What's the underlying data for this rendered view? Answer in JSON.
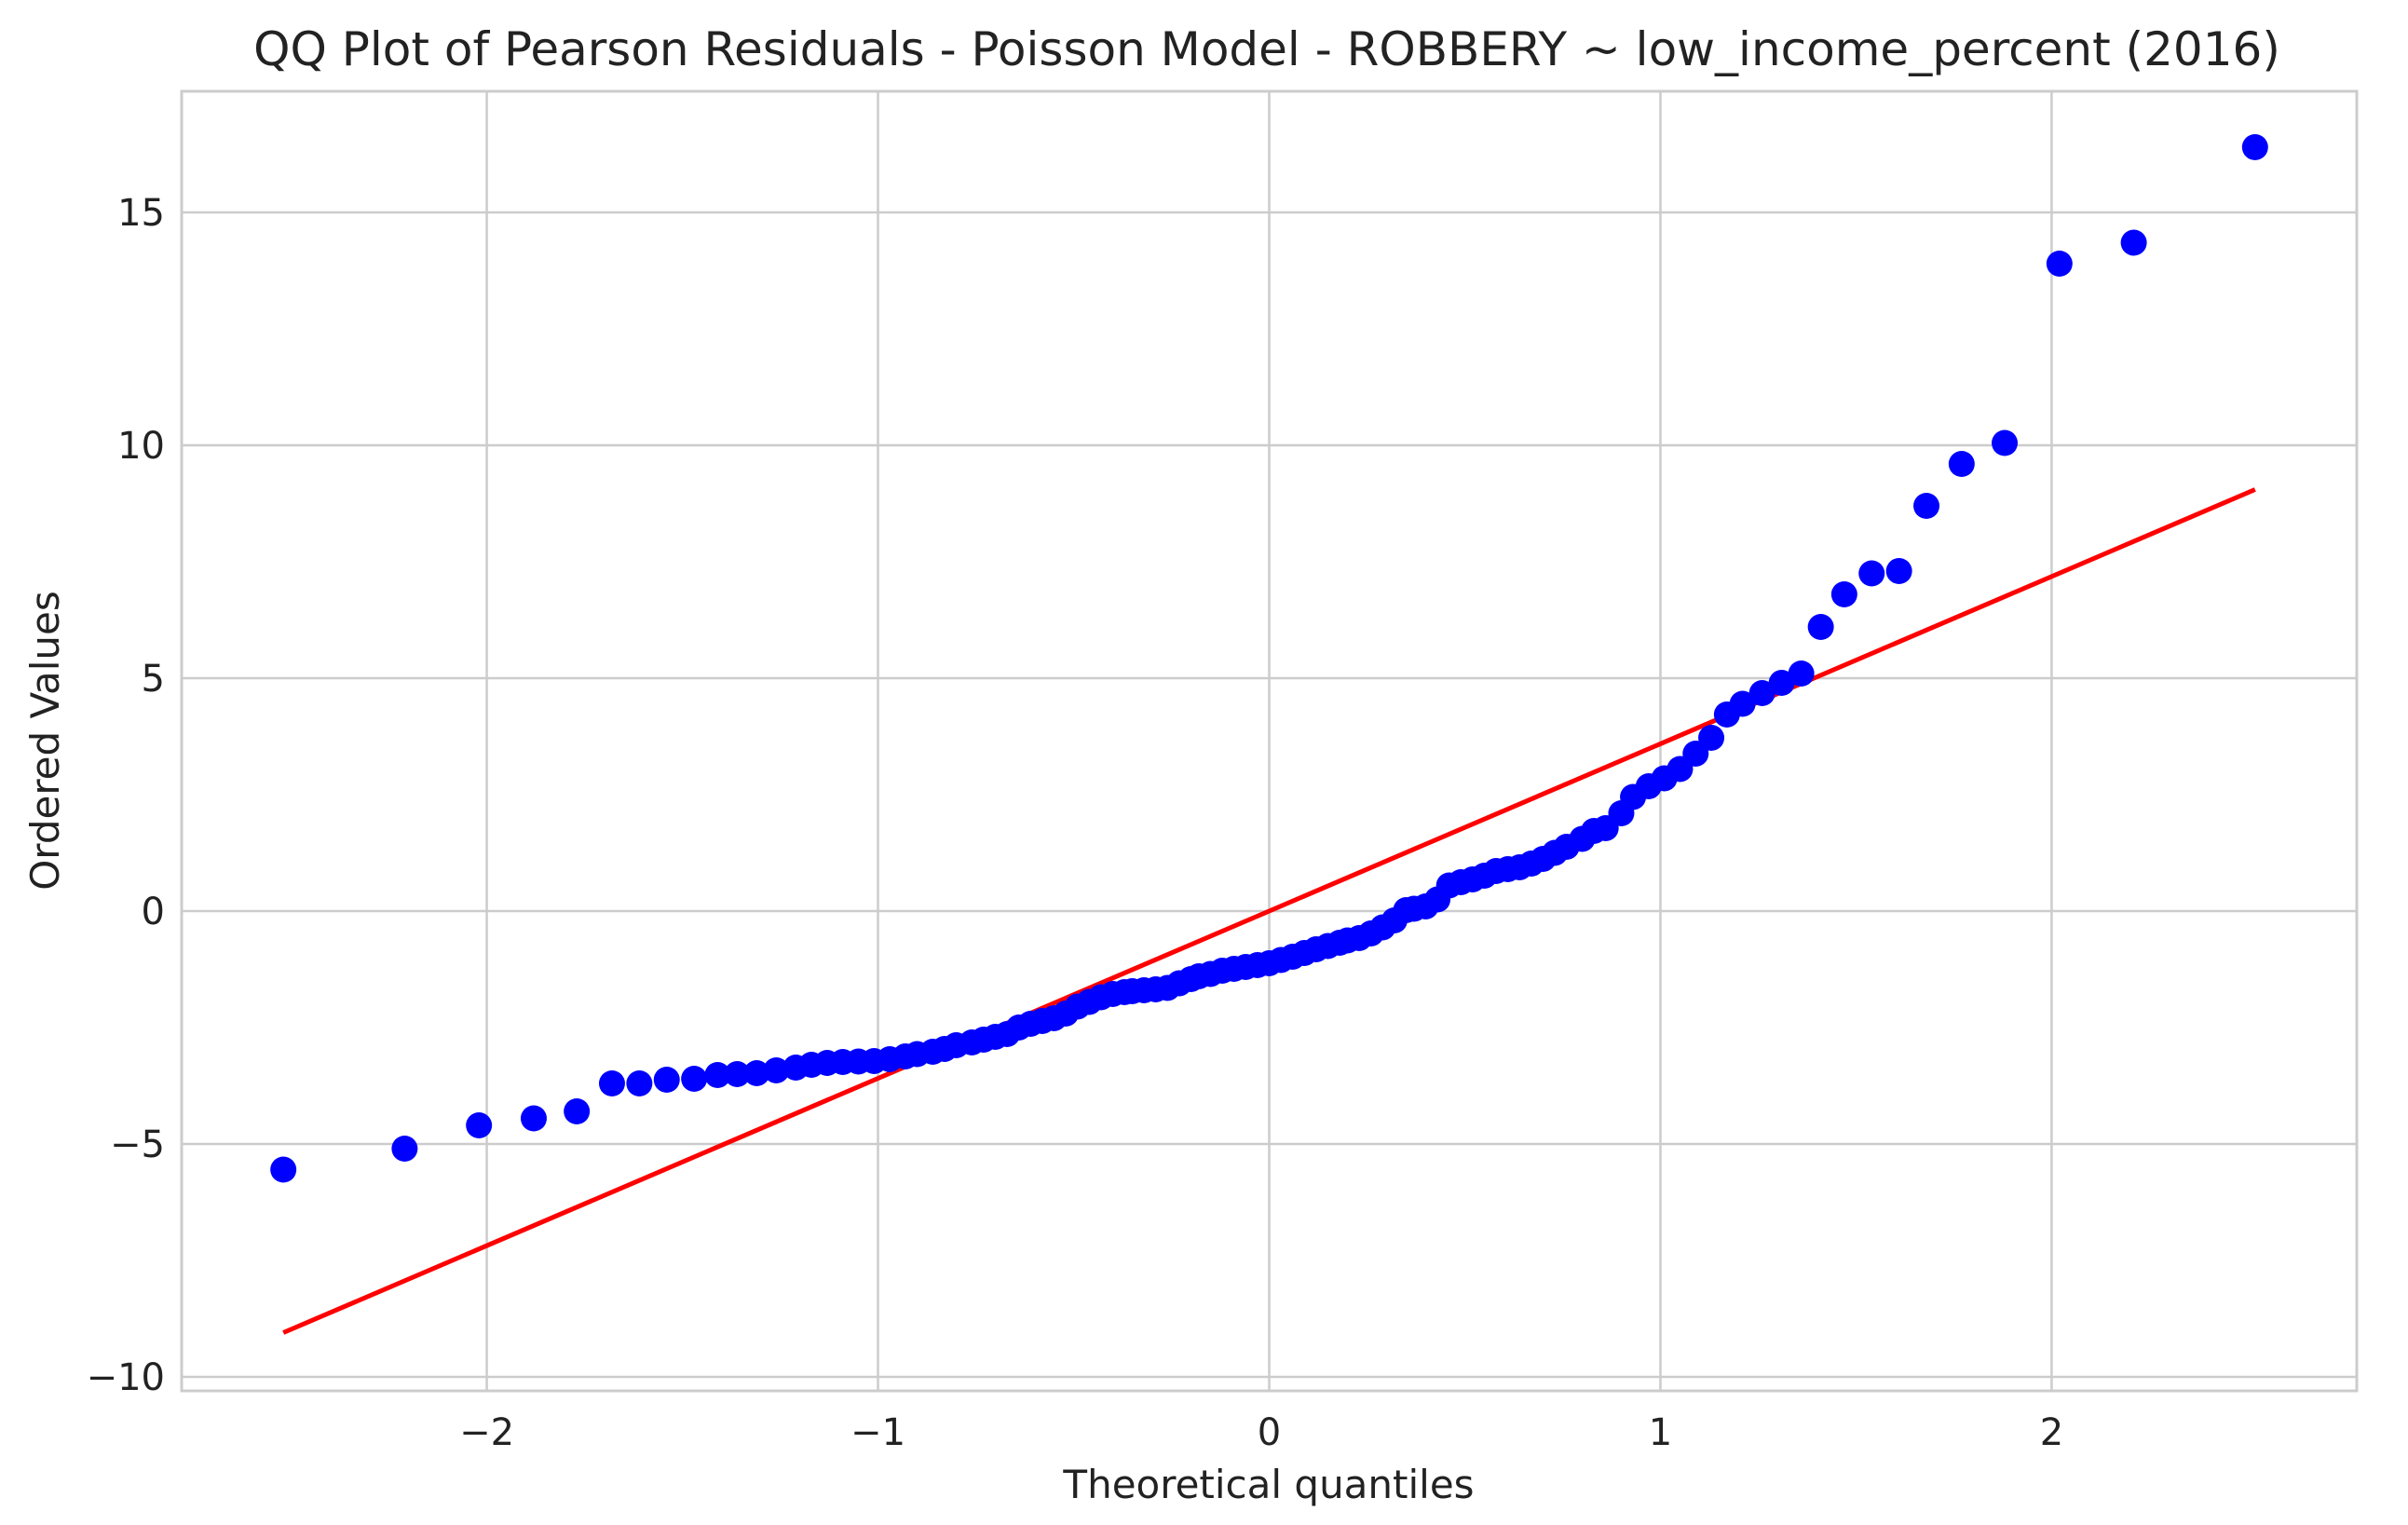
{
  "chart_data": {
    "type": "scatter",
    "title": "QQ Plot of Pearson Residuals - Poisson Model - ROBBERY ~ low_income_percent (2016)",
    "xlabel": "Theoretical quantiles",
    "ylabel": "Ordered Values",
    "xlim": [
      -2.78,
      2.78
    ],
    "ylim": [
      -10.3,
      17.6
    ],
    "xticks": [
      -2,
      -1,
      0,
      1,
      2
    ],
    "xtick_labels": [
      "−2",
      "−1",
      "0",
      "1",
      "2"
    ],
    "yticks": [
      -10,
      -5,
      0,
      5,
      10,
      15
    ],
    "ytick_labels": [
      "−10",
      "−5",
      "0",
      "5",
      "10",
      "15"
    ],
    "grid": true,
    "point_color": "#0000ff",
    "line_color": "#ff0000",
    "points": [
      [
        -2.52,
        -5.55
      ],
      [
        -2.21,
        -5.1
      ],
      [
        -2.02,
        -4.6
      ],
      [
        -1.88,
        -4.45
      ],
      [
        -1.77,
        -4.3
      ],
      [
        -1.68,
        -3.7
      ],
      [
        -1.61,
        -3.7
      ],
      [
        -1.54,
        -3.62
      ],
      [
        -1.47,
        -3.6
      ],
      [
        -1.41,
        -3.52
      ],
      [
        -1.36,
        -3.5
      ],
      [
        -1.31,
        -3.48
      ],
      [
        -1.26,
        -3.42
      ],
      [
        -1.21,
        -3.36
      ],
      [
        -1.17,
        -3.3
      ],
      [
        -1.13,
        -3.26
      ],
      [
        -1.09,
        -3.24
      ],
      [
        -1.05,
        -3.23
      ],
      [
        -1.01,
        -3.22
      ],
      [
        -0.97,
        -3.18
      ],
      [
        -0.93,
        -3.12
      ],
      [
        -0.9,
        -3.07
      ],
      [
        -0.86,
        -3.02
      ],
      [
        -0.83,
        -2.96
      ],
      [
        -0.8,
        -2.88
      ],
      [
        -0.76,
        -2.82
      ],
      [
        -0.73,
        -2.76
      ],
      [
        -0.7,
        -2.7
      ],
      [
        -0.67,
        -2.64
      ],
      [
        -0.64,
        -2.5
      ],
      [
        -0.61,
        -2.42
      ],
      [
        -0.58,
        -2.36
      ],
      [
        -0.55,
        -2.3
      ],
      [
        -0.52,
        -2.2
      ],
      [
        -0.49,
        -2.05
      ],
      [
        -0.46,
        -1.95
      ],
      [
        -0.43,
        -1.85
      ],
      [
        -0.4,
        -1.78
      ],
      [
        -0.37,
        -1.74
      ],
      [
        -0.35,
        -1.72
      ],
      [
        -0.32,
        -1.7
      ],
      [
        -0.29,
        -1.68
      ],
      [
        -0.26,
        -1.65
      ],
      [
        -0.23,
        -1.55
      ],
      [
        -0.2,
        -1.46
      ],
      [
        -0.18,
        -1.4
      ],
      [
        -0.15,
        -1.35
      ],
      [
        -0.12,
        -1.28
      ],
      [
        -0.09,
        -1.24
      ],
      [
        -0.06,
        -1.2
      ],
      [
        -0.03,
        -1.16
      ],
      [
        0.0,
        -1.12
      ],
      [
        0.03,
        -1.05
      ],
      [
        0.06,
        -0.98
      ],
      [
        0.09,
        -0.9
      ],
      [
        0.12,
        -0.82
      ],
      [
        0.15,
        -0.75
      ],
      [
        0.18,
        -0.68
      ],
      [
        0.2,
        -0.63
      ],
      [
        0.23,
        -0.58
      ],
      [
        0.26,
        -0.48
      ],
      [
        0.29,
        -0.35
      ],
      [
        0.32,
        -0.2
      ],
      [
        0.35,
        0.02
      ],
      [
        0.37,
        0.05
      ],
      [
        0.4,
        0.1
      ],
      [
        0.43,
        0.25
      ],
      [
        0.46,
        0.55
      ],
      [
        0.49,
        0.62
      ],
      [
        0.52,
        0.68
      ],
      [
        0.55,
        0.76
      ],
      [
        0.58,
        0.86
      ],
      [
        0.61,
        0.9
      ],
      [
        0.64,
        0.94
      ],
      [
        0.67,
        1.02
      ],
      [
        0.7,
        1.12
      ],
      [
        0.73,
        1.25
      ],
      [
        0.76,
        1.38
      ],
      [
        0.8,
        1.55
      ],
      [
        0.83,
        1.72
      ],
      [
        0.86,
        1.78
      ],
      [
        0.9,
        2.1
      ],
      [
        0.93,
        2.45
      ],
      [
        0.97,
        2.68
      ],
      [
        1.01,
        2.85
      ],
      [
        1.05,
        3.05
      ],
      [
        1.09,
        3.38
      ],
      [
        1.13,
        3.72
      ],
      [
        1.17,
        4.22
      ],
      [
        1.21,
        4.45
      ],
      [
        1.26,
        4.68
      ],
      [
        1.31,
        4.9
      ],
      [
        1.36,
        5.1
      ],
      [
        1.41,
        6.1
      ],
      [
        1.47,
        6.8
      ],
      [
        1.54,
        7.25
      ],
      [
        1.61,
        7.3
      ],
      [
        1.68,
        8.7
      ],
      [
        1.77,
        9.6
      ],
      [
        1.88,
        10.05
      ],
      [
        2.02,
        13.9
      ],
      [
        2.21,
        14.35
      ],
      [
        2.52,
        16.4
      ]
    ],
    "fit_line": {
      "x": [
        -2.52,
        2.52
      ],
      "y": [
        -9.05,
        9.05
      ]
    }
  }
}
